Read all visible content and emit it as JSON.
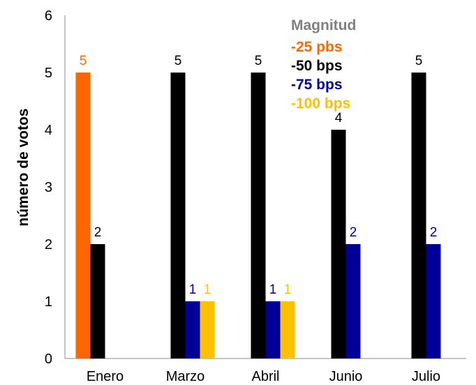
{
  "chart_data": {
    "type": "bar",
    "categories": [
      "Enero",
      "Marzo",
      "Abril",
      "Junio",
      "Julio"
    ],
    "ylabel": "número de votos",
    "ylim": [
      0,
      6
    ],
    "yticks": [
      "0",
      "1",
      "2",
      "3",
      "4",
      "5",
      "6"
    ],
    "grid": false,
    "legend_title": "Magnitud",
    "legend_placement": "top-right",
    "series": [
      {
        "name": "-25 pbs",
        "color": "#FF6600",
        "values": [
          5,
          0,
          0,
          0,
          0
        ]
      },
      {
        "name": "-50 bps",
        "color": "#000000",
        "values": [
          2,
          5,
          5,
          4,
          5
        ]
      },
      {
        "name": "-75 bps",
        "color": "#000099",
        "values": [
          0,
          1,
          1,
          2,
          2
        ]
      },
      {
        "name": "-100 bps",
        "color": "#FFC000",
        "values": [
          0,
          1,
          1,
          0,
          0
        ]
      }
    ]
  }
}
